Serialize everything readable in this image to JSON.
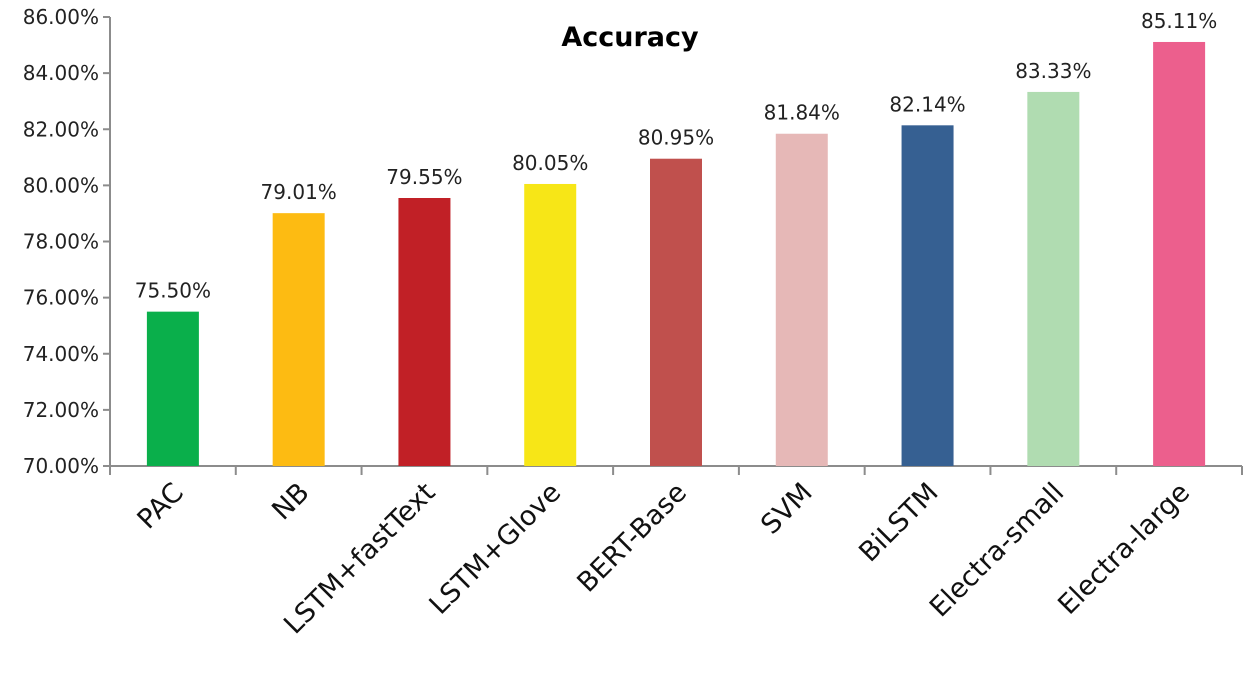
{
  "chart_data": {
    "type": "bar",
    "title": "Accuracy",
    "xlabel": "",
    "ylabel": "",
    "ylim": [
      70,
      86
    ],
    "y_tick_step": 2,
    "y_tick_format": "percent_2dp",
    "grid": false,
    "legend": "none",
    "categories": [
      "PAC",
      "NB",
      "LSTM+fastText",
      "LSTM+Glove",
      "BERT-Base",
      "SVM",
      "BiLSTM",
      "Electra-small",
      "Electra-large"
    ],
    "values": [
      75.5,
      79.01,
      79.55,
      80.05,
      80.95,
      81.84,
      82.14,
      83.33,
      85.11
    ],
    "data_labels": [
      "75.50%",
      "79.01%",
      "79.55%",
      "80.05%",
      "80.95%",
      "81.84%",
      "82.14%",
      "83.33%",
      "85.11%"
    ],
    "bar_colors": [
      "#0aaf4b",
      "#fdbb12",
      "#c12026",
      "#f7e617",
      "#c0504d",
      "#e6b8b7",
      "#366092",
      "#b0dcb1",
      "#ec5f8d"
    ]
  }
}
